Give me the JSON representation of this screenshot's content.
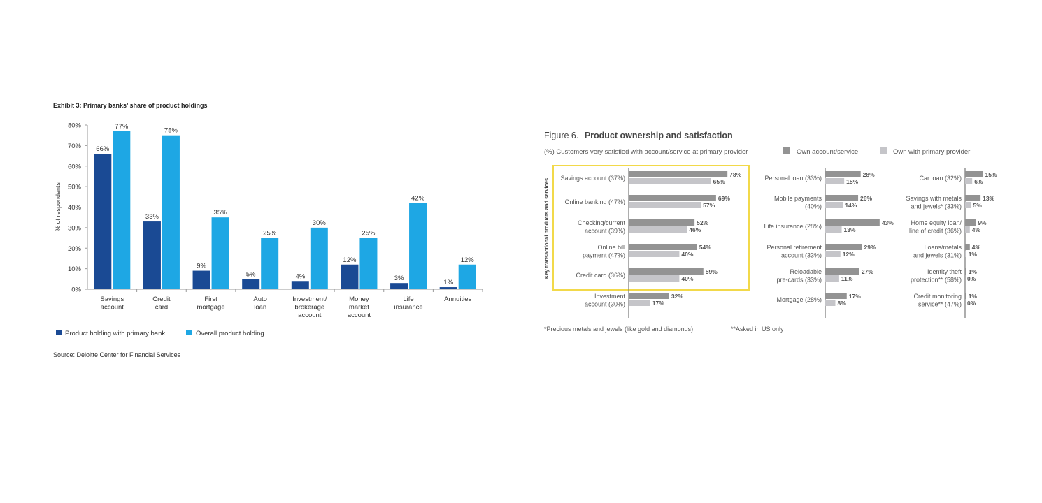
{
  "exhibit3": {
    "title": "Exhibit 3: Primary banks’ share of product holdings",
    "source": "Source: Deloitte Center for Financial Services",
    "chart_data": {
      "type": "bar",
      "title": "Exhibit 3: Primary banks’ share of product holdings",
      "ylabel": "% of respondents",
      "ylim": [
        0,
        80
      ],
      "yticks": [
        "0%",
        "10%",
        "20%",
        "30%",
        "40%",
        "50%",
        "60%",
        "70%",
        "80%"
      ],
      "categories": [
        [
          "Savings",
          "account"
        ],
        [
          "Credit",
          "card"
        ],
        [
          "First",
          "mortgage"
        ],
        [
          "Auto",
          "loan"
        ],
        [
          "Investment/",
          "brokerage",
          "account"
        ],
        [
          "Money",
          "market",
          "account"
        ],
        [
          "Life",
          "insurance"
        ],
        [
          "Annuities"
        ]
      ],
      "series": [
        {
          "name": "Product holding with primary bank",
          "color": "#1a4a94",
          "values": [
            66,
            33,
            9,
            5,
            4,
            12,
            3,
            1
          ],
          "labels": [
            "66%",
            "33%",
            "9%",
            "5%",
            "4%",
            "12%",
            "3%",
            "1%"
          ]
        },
        {
          "name": "Overall product holding",
          "color": "#1ea7e4",
          "values": [
            77,
            75,
            35,
            25,
            30,
            25,
            42,
            12
          ],
          "labels": [
            "77%",
            "75%",
            "35%",
            "25%",
            "30%",
            "25%",
            "42%",
            "12%"
          ]
        }
      ],
      "legend": "bottom-left"
    }
  },
  "figure6": {
    "title_prefix": "Figure 6.",
    "title": "Product ownership and satisfaction",
    "subtitle": "(%) Customers very satisfied with account/service at primary provider",
    "side_label": "Key transactional products and services",
    "footnote1": "*Precious metals and jewels (like gold and diamonds)",
    "footnote2": "**Asked in US only",
    "colors": {
      "own": "#939393",
      "primary": "#c5c5c9",
      "highlight": "#f2d94a"
    },
    "chart_data": {
      "type": "bar",
      "orientation": "horizontal",
      "series_names": [
        "Own account/service",
        "Own with primary provider"
      ],
      "panels": [
        {
          "categories": [
            [
              "Savings account (37%)"
            ],
            [
              "Online banking (47%)"
            ],
            [
              "Checking/current",
              "account (39%)"
            ],
            [
              "Online bill",
              "payment (47%)"
            ],
            [
              "Credit card (36%)"
            ],
            [
              "Investment",
              "account (30%)"
            ]
          ],
          "own": [
            78,
            69,
            52,
            54,
            59,
            32
          ],
          "primary": [
            65,
            57,
            46,
            40,
            40,
            17
          ],
          "own_labels": [
            "78%",
            "69%",
            "52%",
            "54%",
            "59%",
            "32%"
          ],
          "primary_labels": [
            "65%",
            "57%",
            "46%",
            "40%",
            "40%",
            "17%"
          ]
        },
        {
          "categories": [
            [
              "Personal loan (33%)"
            ],
            [
              "Mobile  payments",
              "(40%)"
            ],
            [
              "Life insurance (28%)"
            ],
            [
              "Personal retirement",
              "account (33%)"
            ],
            [
              "Reloadable",
              "pre-cards (33%)"
            ],
            [
              "Mortgage (28%)"
            ]
          ],
          "own": [
            28,
            26,
            43,
            29,
            27,
            17
          ],
          "primary": [
            15,
            14,
            13,
            12,
            11,
            8
          ],
          "own_labels": [
            "28%",
            "26%",
            "43%",
            "29%",
            "27%",
            "17%"
          ],
          "primary_labels": [
            "15%",
            "14%",
            "13%",
            "12%",
            "11%",
            "8%"
          ]
        },
        {
          "categories": [
            [
              "Car loan (32%)"
            ],
            [
              "Savings with metals",
              "and jewels* (33%)"
            ],
            [
              "Home equity loan/",
              "line of credit (36%)"
            ],
            [
              "Loans/metals",
              "and jewels (31%)"
            ],
            [
              "Identity theft",
              "protection** (58%)"
            ],
            [
              "Credit monitoring",
              "service** (47%)"
            ]
          ],
          "own": [
            15,
            13,
            9,
            4,
            1,
            1
          ],
          "primary": [
            6,
            5,
            4,
            1,
            0,
            0
          ],
          "own_labels": [
            "15%",
            "13%",
            "9%",
            "4%",
            "1%",
            "1%"
          ],
          "primary_labels": [
            "6%",
            "5%",
            "4%",
            "1%",
            "0%",
            "0%"
          ]
        }
      ]
    }
  }
}
